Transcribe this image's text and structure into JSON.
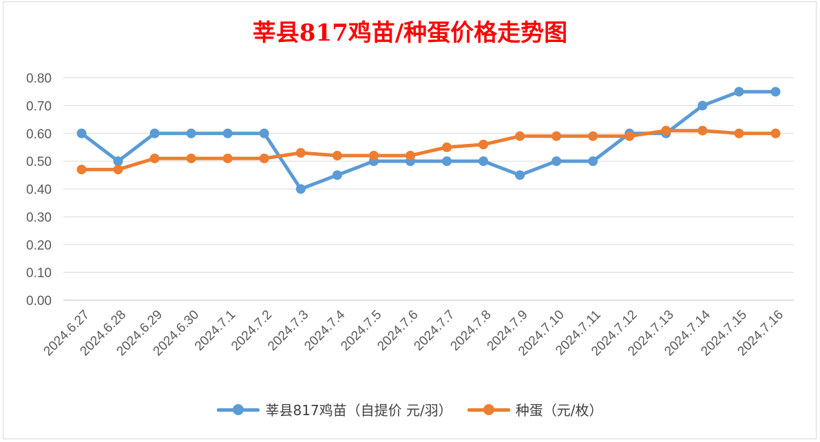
{
  "chart_data": {
    "type": "line",
    "title": "莘县817鸡苗/种蛋价格走势图",
    "categories": [
      "2024.6.27",
      "2024.6.28",
      "2024.6.29",
      "2024.6.30",
      "2024.7.1",
      "2024.7.2",
      "2024.7.3",
      "2024.7.4",
      "2024.7.5",
      "2024.7.6",
      "2024.7.7",
      "2024.7.8",
      "2024.7.9",
      "2024.7.10",
      "2024.7.11",
      "2024.7.12",
      "2024.7.13",
      "2024.7.14",
      "2024.7.15",
      "2024.7.16"
    ],
    "y_ticks": [
      "0.00",
      "0.10",
      "0.20",
      "0.30",
      "0.40",
      "0.50",
      "0.60",
      "0.70",
      "0.80"
    ],
    "ylim": [
      0,
      0.8
    ],
    "grid": true,
    "legend_position": "bottom",
    "series": [
      {
        "name": "莘县817鸡苗（自提价 元/羽）",
        "color": "#5b9bd5",
        "values": [
          0.6,
          0.5,
          0.6,
          0.6,
          0.6,
          0.6,
          0.4,
          0.45,
          0.5,
          0.5,
          0.5,
          0.5,
          0.45,
          0.5,
          0.5,
          0.6,
          0.6,
          0.7,
          0.75,
          0.75
        ]
      },
      {
        "name": "种蛋（元/枚）",
        "color": "#ed7d31",
        "values": [
          0.47,
          0.47,
          0.51,
          0.51,
          0.51,
          0.51,
          0.53,
          0.52,
          0.52,
          0.52,
          0.55,
          0.56,
          0.59,
          0.59,
          0.59,
          0.59,
          0.61,
          0.61,
          0.6,
          0.6
        ]
      }
    ]
  }
}
